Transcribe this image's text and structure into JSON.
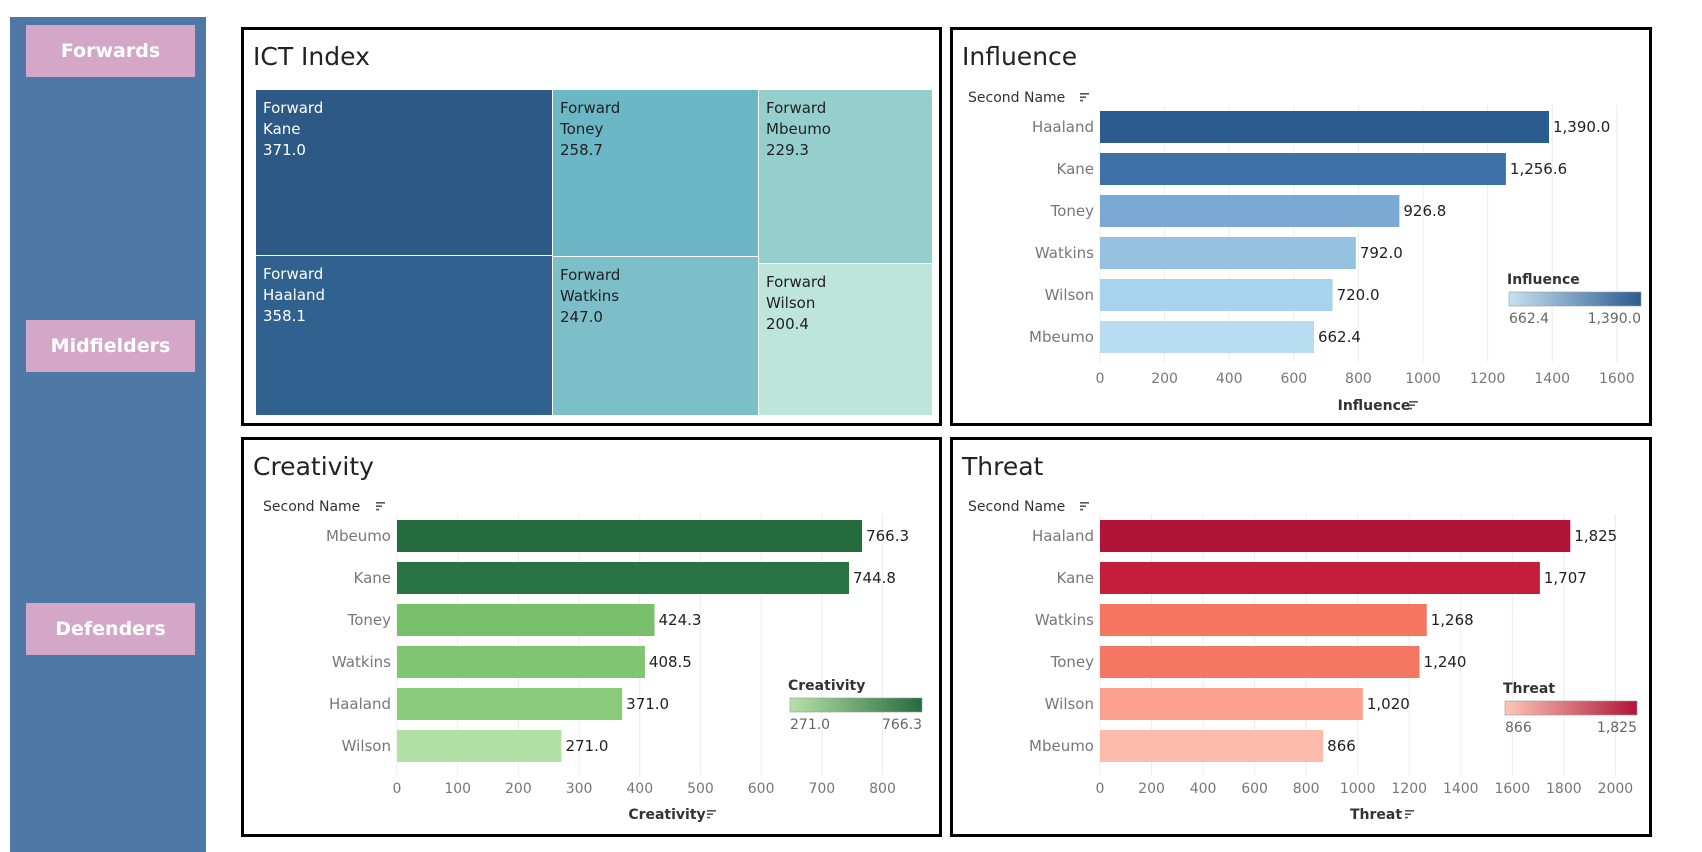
{
  "nav": {
    "forwards_label": "Forwards",
    "midfielders_label": "Midfielders",
    "defenders_label": "Defenders"
  },
  "colors": {
    "sidebar_bg": "#4e79a7",
    "nav_button_bg": "#d4a6c8"
  },
  "ict": {
    "title": "ICT Index",
    "cells": [
      {
        "position": "Forward",
        "name": "Kane",
        "value": "371.0",
        "color": "#2d5987",
        "text_color": "#ffffff"
      },
      {
        "position": "Forward",
        "name": "Haaland",
        "value": "358.1",
        "color": "#30618f",
        "text_color": "#ffffff"
      },
      {
        "position": "Forward",
        "name": "Toney",
        "value": "258.7",
        "color": "#6cb7c5",
        "text_color": "#222222"
      },
      {
        "position": "Forward",
        "name": "Watkins",
        "value": "247.0",
        "color": "#7cbfc9",
        "text_color": "#222222"
      },
      {
        "position": "Forward",
        "name": "Mbeumo",
        "value": "229.3",
        "color": "#94cfce",
        "text_color": "#222222"
      },
      {
        "position": "Forward",
        "name": "Wilson",
        "value": "200.4",
        "color": "#bde5da",
        "text_color": "#222222"
      }
    ]
  },
  "chart_data": [
    {
      "type": "treemap",
      "title": "ICT Index",
      "categories": [
        "Kane",
        "Haaland",
        "Toney",
        "Watkins",
        "Mbeumo",
        "Wilson"
      ],
      "values": [
        371.0,
        358.1,
        258.7,
        247.0,
        229.3,
        200.4
      ],
      "group": "Forward"
    },
    {
      "type": "bar",
      "orientation": "horizontal",
      "title": "Influence",
      "ylabel": "Second Name",
      "xlabel": "Influence",
      "categories": [
        "Haaland",
        "Kane",
        "Toney",
        "Watkins",
        "Wilson",
        "Mbeumo"
      ],
      "values": [
        1390.0,
        1256.6,
        926.8,
        792.0,
        720.0,
        662.4
      ],
      "value_labels": [
        "1,390.0",
        "1,256.6",
        "926.8",
        "792.0",
        "720.0",
        "662.4"
      ],
      "bar_colors": [
        "#2c5b8f",
        "#3e71a6",
        "#7aa9d4",
        "#96c2e2",
        "#a7d3ec",
        "#b8dcf0"
      ],
      "xlim": [
        0,
        1650
      ],
      "xticks": [
        0,
        200,
        400,
        600,
        800,
        1000,
        1200,
        1400,
        1600
      ],
      "grid": true,
      "legend": {
        "title": "Influence",
        "min_label": "662.4",
        "max_label": "1,390.0",
        "color_from": "#c6e1f2",
        "color_to": "#2c5b8f",
        "position": "bottom-right"
      }
    },
    {
      "type": "bar",
      "orientation": "horizontal",
      "title": "Creativity",
      "ylabel": "Second Name",
      "xlabel": "Creativity",
      "categories": [
        "Mbeumo",
        "Kane",
        "Toney",
        "Watkins",
        "Haaland",
        "Wilson"
      ],
      "values": [
        766.3,
        744.8,
        424.3,
        408.5,
        371.0,
        271.0
      ],
      "value_labels": [
        "766.3",
        "744.8",
        "424.3",
        "408.5",
        "371.0",
        "271.0"
      ],
      "bar_colors": [
        "#246b3e",
        "#287243",
        "#78c06c",
        "#80c572",
        "#8bcc7c",
        "#b3e0a5"
      ],
      "xlim": [
        0,
        870
      ],
      "xticks": [
        0,
        100,
        200,
        300,
        400,
        500,
        600,
        700,
        800
      ],
      "grid": true,
      "legend": {
        "title": "Creativity",
        "min_label": "271.0",
        "max_label": "766.3",
        "color_from": "#b7e2a8",
        "color_to": "#246b3e",
        "position": "bottom-right"
      }
    },
    {
      "type": "bar",
      "orientation": "horizontal",
      "title": "Threat",
      "ylabel": "Second Name",
      "xlabel": "Threat",
      "categories": [
        "Haaland",
        "Kane",
        "Watkins",
        "Toney",
        "Wilson",
        "Mbeumo"
      ],
      "values": [
        1825,
        1707,
        1268,
        1240,
        1020,
        866
      ],
      "value_labels": [
        "1,825",
        "1,707",
        "1,268",
        "1,240",
        "1,020",
        "866"
      ],
      "bar_colors": [
        "#b01538",
        "#c41e3d",
        "#f47560",
        "#f47763",
        "#fba08e",
        "#fbbcae"
      ],
      "xlim": [
        0,
        2080
      ],
      "xticks": [
        0,
        200,
        400,
        600,
        800,
        1000,
        1200,
        1400,
        1600,
        1800,
        2000
      ],
      "grid": true,
      "legend": {
        "title": "Threat",
        "min_label": "866",
        "max_label": "1,825",
        "color_from": "#fcc7b8",
        "color_to": "#b01538",
        "position": "bottom-right"
      }
    }
  ]
}
